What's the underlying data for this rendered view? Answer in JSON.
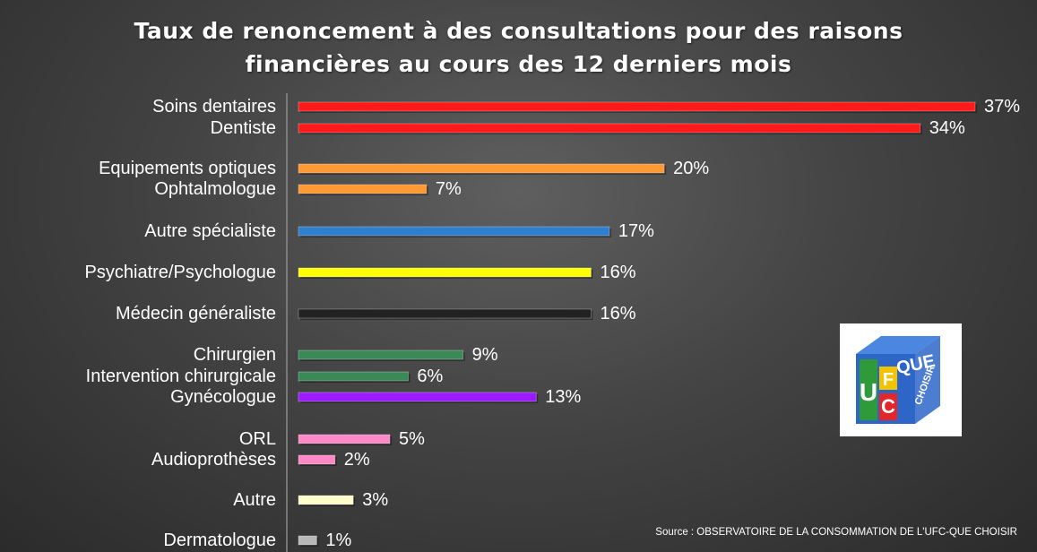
{
  "title_line1": "Taux de renoncement à des consultations pour des raisons",
  "title_line2": "financières au cours des 12 derniers mois",
  "source": "Source : OBSERVATOIRE DE LA CONSOMMATION DE L'UFC-QUE CHOISIR",
  "logo": {
    "letters": [
      "U",
      "F",
      "C"
    ],
    "brand_text": "QUE",
    "brand_subtext": "CHOISIR",
    "colors": {
      "cube_blue": "#2e66c8",
      "yellow": "#f2c400",
      "red": "#e3262a",
      "green": "#2f9a3a",
      "cube_top": "#4b86e0"
    }
  },
  "chart_data": {
    "type": "bar",
    "orientation": "horizontal",
    "categories": [
      "Soins dentaires",
      "Dentiste",
      "Equipements optiques",
      "Ophtalmologue",
      "Autre spécialiste",
      "Psychiatre/Psychologue",
      "Médecin généraliste",
      "Chirurgien",
      "Intervention chirurgicale",
      "Gynécologue",
      "ORL",
      "Audioprothèses",
      "Autre",
      "Dermatologue"
    ],
    "values": [
      37,
      34,
      20,
      7,
      17,
      16,
      16,
      9,
      6,
      13,
      5,
      2,
      3,
      1
    ],
    "value_labels": [
      "37%",
      "34%",
      "20%",
      "7%",
      "17%",
      "16%",
      "16%",
      "9%",
      "6%",
      "13%",
      "5%",
      "2%",
      "3%",
      "1%"
    ],
    "colors": [
      "#ff1a1a",
      "#ff1a1a",
      "#ff9933",
      "#ff9933",
      "#2f7fd1",
      "#ffff00",
      "#222222",
      "#3a8a58",
      "#3a8a58",
      "#9b1aff",
      "#ff88c6",
      "#ff88c6",
      "#ffffcc",
      "#b8b8b8"
    ],
    "unit": "%",
    "grid": false
  }
}
